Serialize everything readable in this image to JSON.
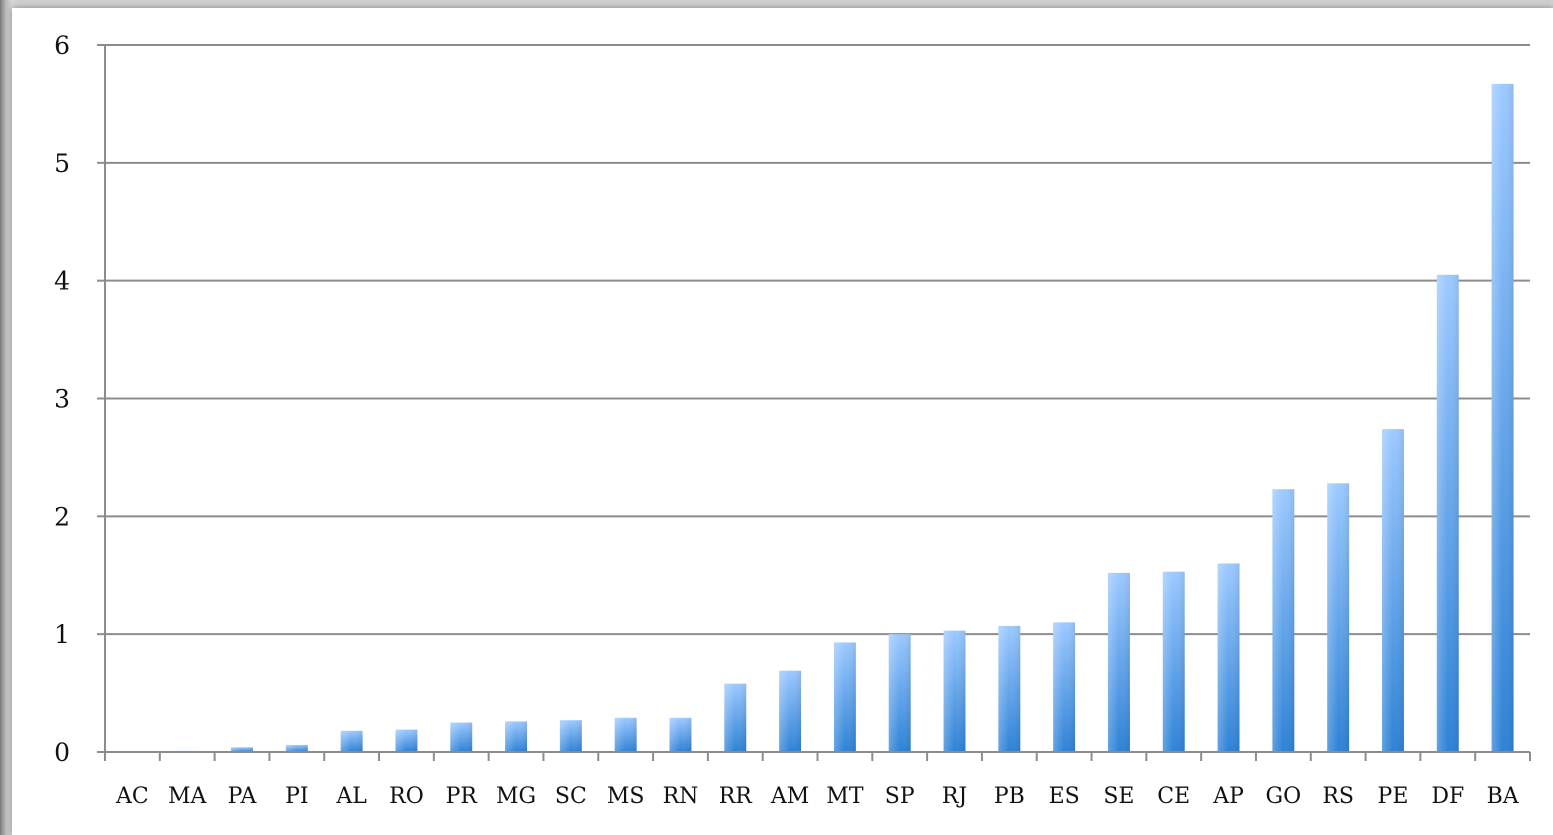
{
  "chart_data": {
    "type": "bar",
    "categories": [
      "AC",
      "MA",
      "PA",
      "PI",
      "AL",
      "RO",
      "PR",
      "MG",
      "SC",
      "MS",
      "RN",
      "RR",
      "AM",
      "MT",
      "SP",
      "RJ",
      "PB",
      "ES",
      "SE",
      "CE",
      "AP",
      "GO",
      "RS",
      "PE",
      "DF",
      "BA"
    ],
    "values": [
      0,
      0.01,
      0.04,
      0.06,
      0.18,
      0.19,
      0.25,
      0.26,
      0.27,
      0.29,
      0.29,
      0.58,
      0.69,
      0.93,
      1.0,
      1.03,
      1.07,
      1.1,
      1.52,
      1.53,
      1.6,
      2.23,
      2.28,
      2.74,
      4.05,
      5.67
    ],
    "ylim": [
      0,
      6
    ],
    "yticks": [
      "0",
      "1",
      "2",
      "3",
      "4",
      "5",
      "6"
    ],
    "title": "",
    "xlabel": "",
    "ylabel": "",
    "grid": "horizontal",
    "legend": "none",
    "colors": {
      "bar_light": "#9cc9ff",
      "bar_dark": "#2e82d6",
      "grid": "#8c8c8c"
    }
  }
}
